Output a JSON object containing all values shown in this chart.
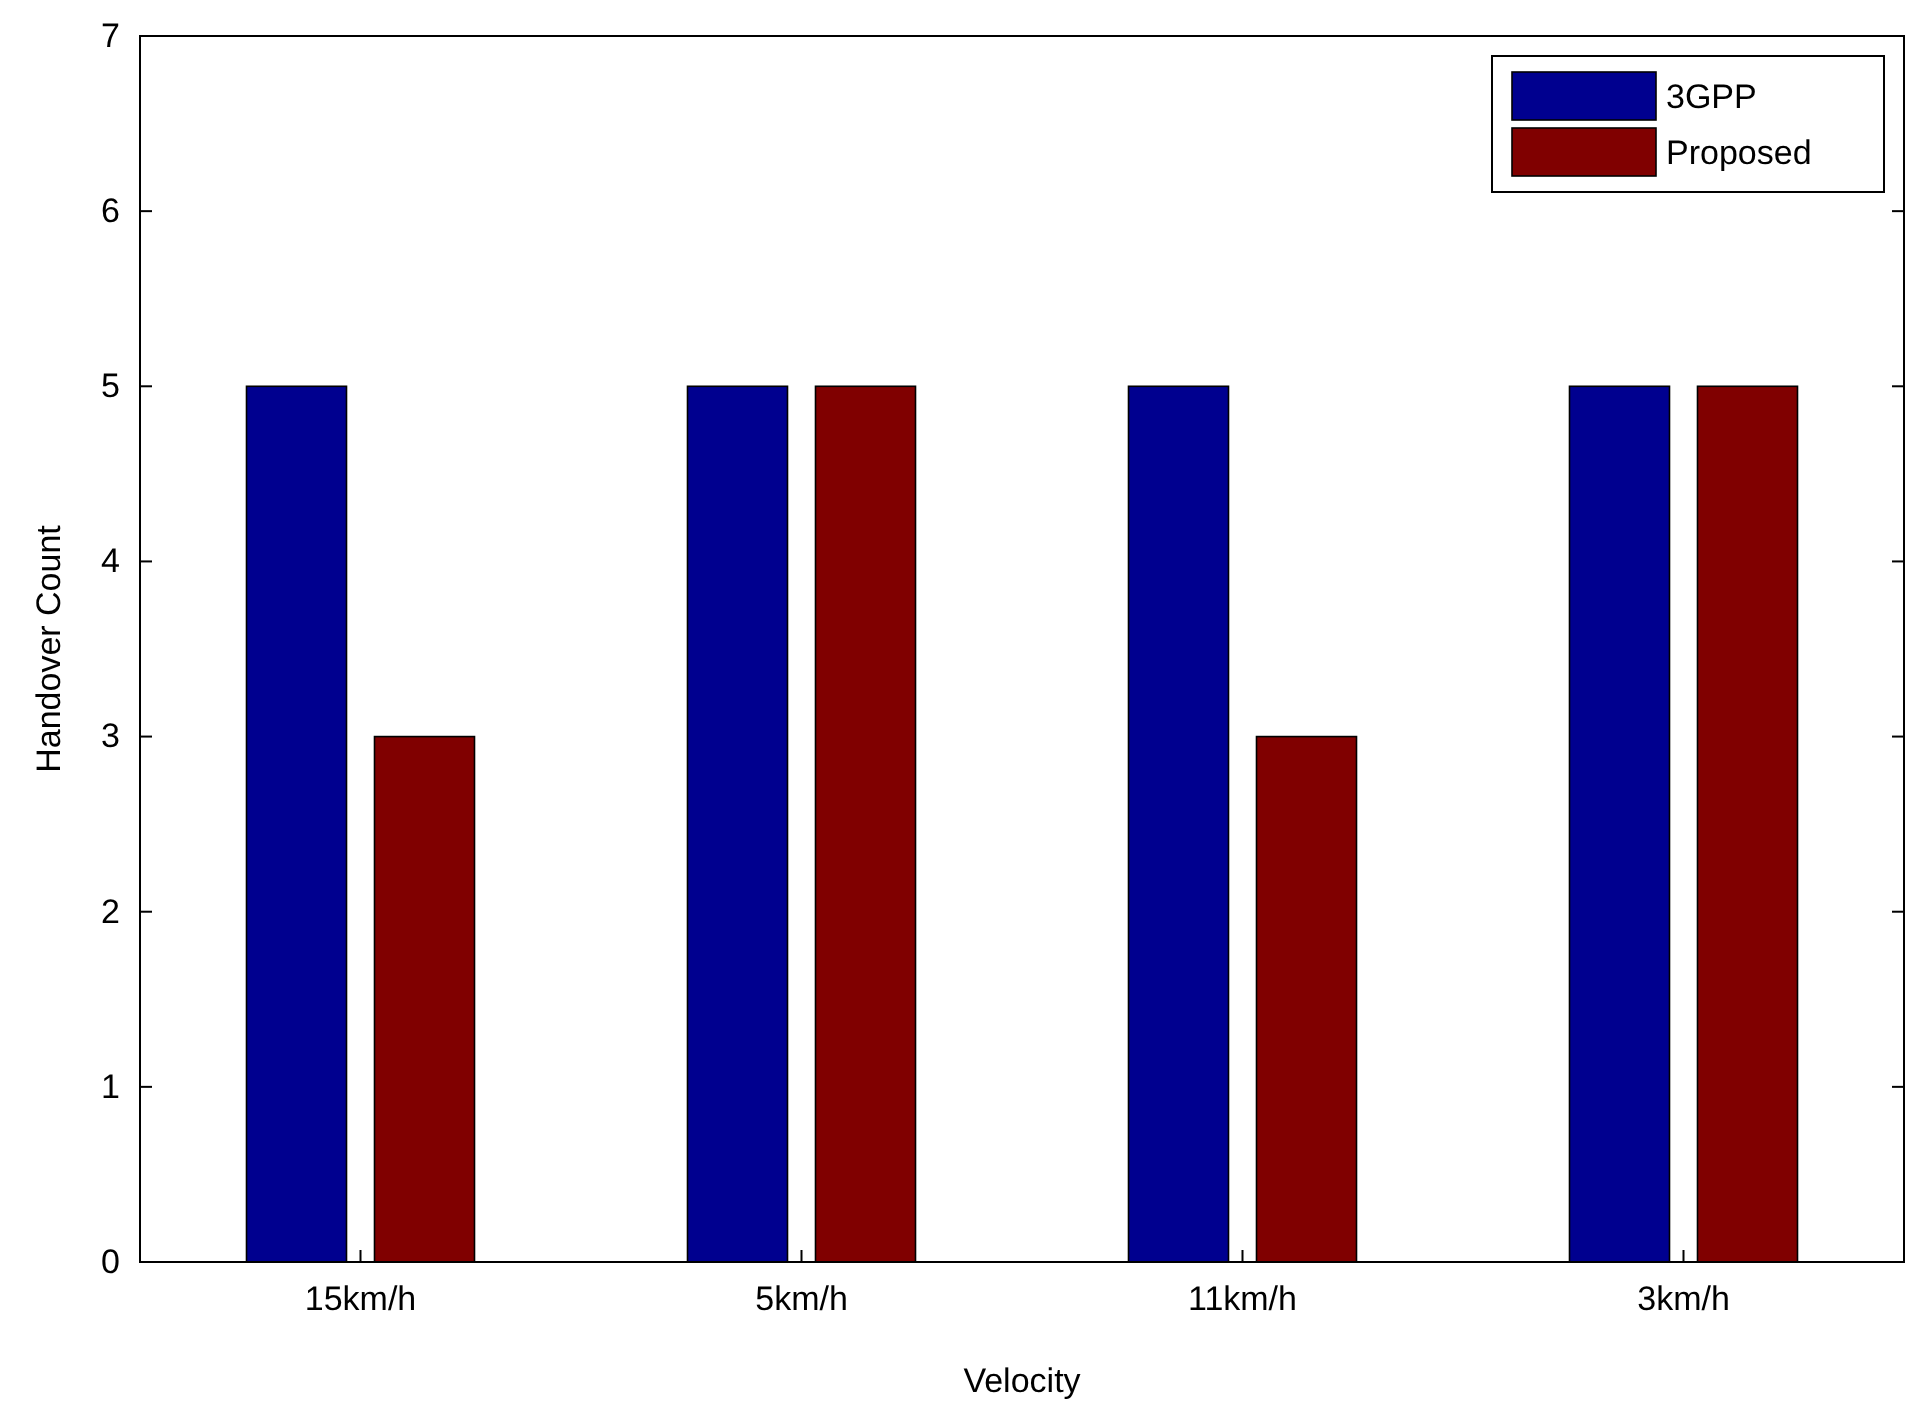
{
  "chart_data": {
    "type": "bar",
    "xlabel": "Velocity",
    "ylabel": "Handover Count",
    "categories": [
      "15km/h",
      "5km/h",
      "11km/h",
      "3km/h"
    ],
    "series": [
      {
        "name": "3GPP",
        "color": "#00008f",
        "values": [
          5,
          5,
          5,
          5
        ]
      },
      {
        "name": "Proposed",
        "color": "#800000",
        "values": [
          3,
          5,
          3,
          5
        ]
      }
    ],
    "ylim": [
      0,
      7
    ],
    "yticks": [
      0,
      1,
      2,
      3,
      4,
      5,
      6,
      7
    ],
    "legend": "top right"
  }
}
